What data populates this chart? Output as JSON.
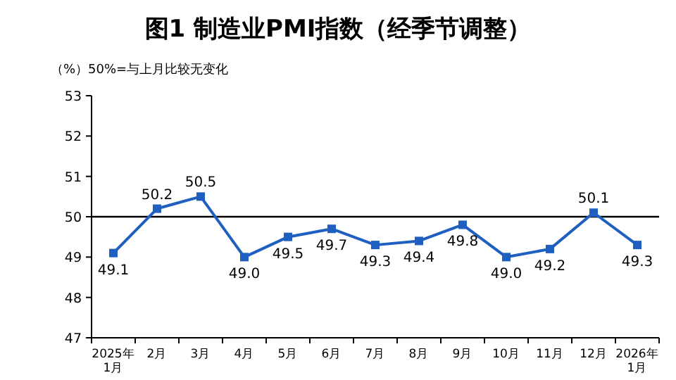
{
  "chart_data": {
    "type": "line",
    "title": "图1  制造业PMI指数（经季节调整）",
    "annotations": [
      "（%）50%=与上月比较无变化"
    ],
    "categories": [
      "2025年\n1月",
      "2月",
      "3月",
      "4月",
      "5月",
      "6月",
      "7月",
      "8月",
      "9月",
      "10月",
      "11月",
      "12月",
      "2026年\n1月"
    ],
    "series": [
      {
        "color": "#1f5fbf",
        "values": [
          49.1,
          50.2,
          50.5,
          49.0,
          49.5,
          49.7,
          49.3,
          49.4,
          49.8,
          49.0,
          49.2,
          50.1,
          49.3
        ],
        "value_labels": [
          "49.1",
          "50.2",
          "50.5",
          "49.0",
          "49.5",
          "49.7",
          "49.3",
          "49.4",
          "49.8",
          "49.0",
          "49.2",
          "50.1",
          "49.3"
        ]
      }
    ],
    "ylim": [
      47,
      53
    ],
    "yticks": [
      47,
      48,
      49,
      50,
      51,
      52,
      53
    ],
    "ref_lines": [
      {
        "axis": "y",
        "value": 50,
        "color": "#000000"
      }
    ],
    "marker": "square"
  }
}
